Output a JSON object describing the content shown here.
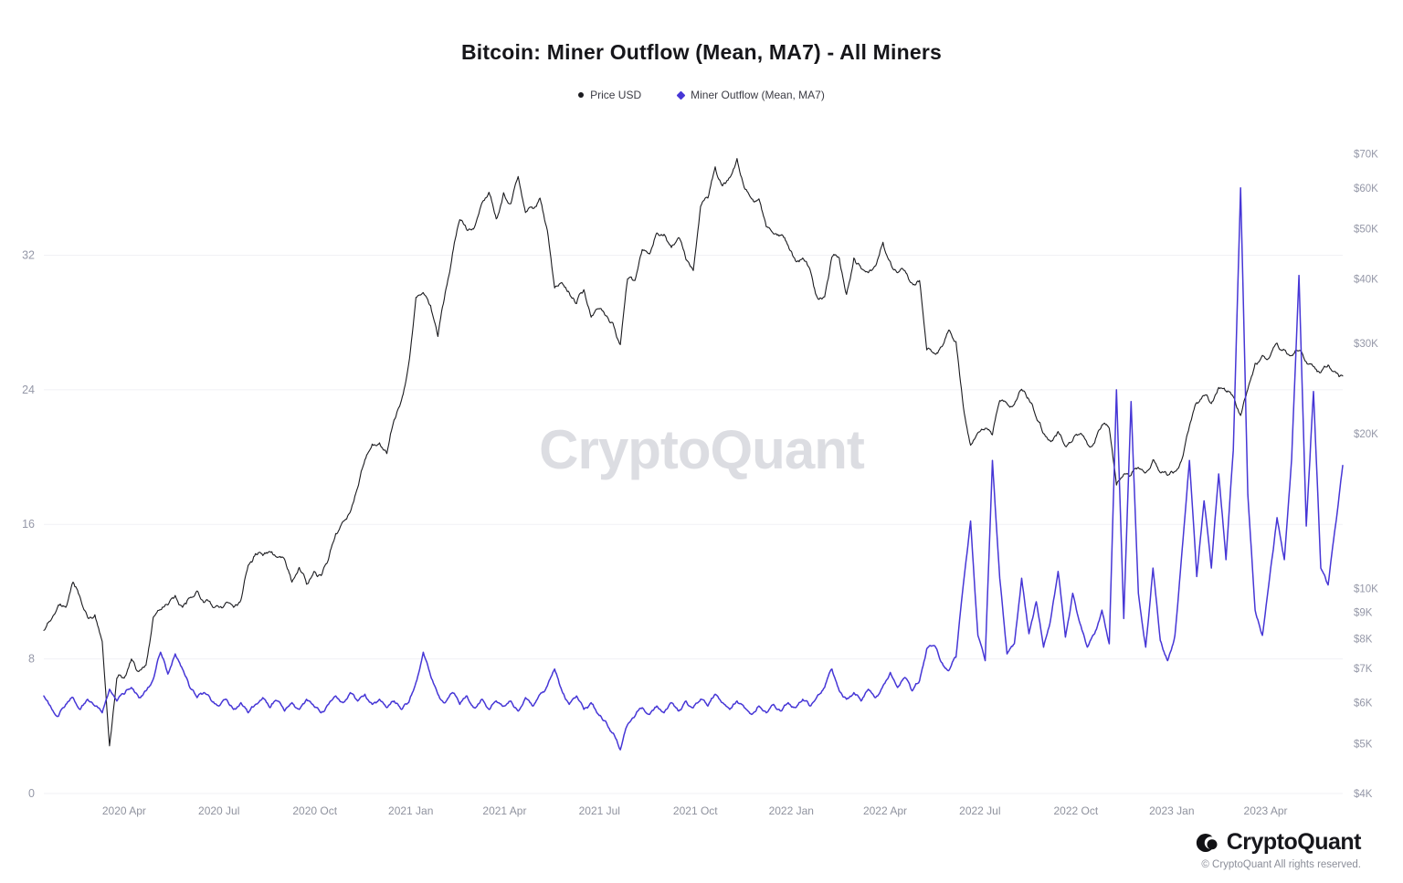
{
  "page": {
    "title": "Bitcoin: Miner Outflow (Mean, MA7) - All Miners",
    "watermark": "CryptoQuant",
    "footer": {
      "brand": "CryptoQuant",
      "copyright": "© CryptoQuant All rights reserved."
    }
  },
  "theme": {
    "grid": "#f1f1f5",
    "axis_text": "#9598a8",
    "x_axis_text": "#8f929e",
    "price_color": "#1b1b1f",
    "outflow_color": "#4636d6"
  },
  "legend": [
    {
      "label": "Price USD",
      "color": "#1b1b1f",
      "marker": "circle"
    },
    {
      "label": "Miner Outflow (Mean, MA7)",
      "color": "#4636d6",
      "marker": "diamond"
    }
  ],
  "chart_data": {
    "type": "line",
    "title": "Bitcoin: Miner Outflow (Mean, MA7) - All Miners",
    "legend_position": "top",
    "grid": "horizontal",
    "x": [
      "2020-01-15",
      "2020-01-22",
      "2020-01-29",
      "2020-02-05",
      "2020-02-12",
      "2020-02-19",
      "2020-02-26",
      "2020-03-04",
      "2020-03-11",
      "2020-03-18",
      "2020-03-25",
      "2020-04-01",
      "2020-04-08",
      "2020-04-15",
      "2020-04-22",
      "2020-04-29",
      "2020-05-06",
      "2020-05-13",
      "2020-05-20",
      "2020-05-27",
      "2020-06-03",
      "2020-06-10",
      "2020-06-17",
      "2020-06-24",
      "2020-07-01",
      "2020-07-08",
      "2020-07-15",
      "2020-07-22",
      "2020-07-29",
      "2020-08-05",
      "2020-08-12",
      "2020-08-19",
      "2020-08-26",
      "2020-09-02",
      "2020-09-09",
      "2020-09-16",
      "2020-09-23",
      "2020-09-30",
      "2020-10-07",
      "2020-10-14",
      "2020-10-21",
      "2020-10-28",
      "2020-11-04",
      "2020-11-11",
      "2020-11-18",
      "2020-11-25",
      "2020-12-02",
      "2020-12-09",
      "2020-12-16",
      "2020-12-23",
      "2020-12-30",
      "2021-01-06",
      "2021-01-13",
      "2021-01-20",
      "2021-01-27",
      "2021-02-03",
      "2021-02-10",
      "2021-02-17",
      "2021-02-24",
      "2021-03-03",
      "2021-03-10",
      "2021-03-17",
      "2021-03-24",
      "2021-03-31",
      "2021-04-07",
      "2021-04-14",
      "2021-04-21",
      "2021-04-28",
      "2021-05-05",
      "2021-05-12",
      "2021-05-19",
      "2021-05-26",
      "2021-06-02",
      "2021-06-09",
      "2021-06-16",
      "2021-06-23",
      "2021-06-30",
      "2021-07-07",
      "2021-07-14",
      "2021-07-21",
      "2021-07-28",
      "2021-08-04",
      "2021-08-11",
      "2021-08-18",
      "2021-08-25",
      "2021-09-01",
      "2021-09-08",
      "2021-09-15",
      "2021-09-22",
      "2021-09-29",
      "2021-10-06",
      "2021-10-13",
      "2021-10-20",
      "2021-10-27",
      "2021-11-03",
      "2021-11-10",
      "2021-11-17",
      "2021-11-24",
      "2021-12-01",
      "2021-12-08",
      "2021-12-15",
      "2021-12-22",
      "2021-12-29",
      "2022-01-05",
      "2022-01-12",
      "2022-01-19",
      "2022-01-26",
      "2022-02-02",
      "2022-02-09",
      "2022-02-16",
      "2022-02-23",
      "2022-03-02",
      "2022-03-09",
      "2022-03-16",
      "2022-03-23",
      "2022-03-30",
      "2022-04-06",
      "2022-04-13",
      "2022-04-20",
      "2022-04-27",
      "2022-05-04",
      "2022-05-11",
      "2022-05-18",
      "2022-05-25",
      "2022-06-01",
      "2022-06-08",
      "2022-06-15",
      "2022-06-22",
      "2022-06-29",
      "2022-07-06",
      "2022-07-13",
      "2022-07-20",
      "2022-07-27",
      "2022-08-03",
      "2022-08-10",
      "2022-08-17",
      "2022-08-24",
      "2022-08-31",
      "2022-09-07",
      "2022-09-14",
      "2022-09-21",
      "2022-09-28",
      "2022-10-05",
      "2022-10-12",
      "2022-10-19",
      "2022-10-26",
      "2022-11-02",
      "2022-11-09",
      "2022-11-16",
      "2022-11-23",
      "2022-11-30",
      "2022-12-07",
      "2022-12-14",
      "2022-12-21",
      "2022-12-28",
      "2023-01-04",
      "2023-01-11",
      "2023-01-18",
      "2023-01-25",
      "2023-02-01",
      "2023-02-08",
      "2023-02-15",
      "2023-02-22",
      "2023-03-01",
      "2023-03-08",
      "2023-03-15",
      "2023-03-22",
      "2023-03-29",
      "2023-04-05",
      "2023-04-12",
      "2023-04-19",
      "2023-04-26",
      "2023-05-03",
      "2023-05-10",
      "2023-05-17",
      "2023-05-24",
      "2023-05-31",
      "2023-06-07",
      "2023-06-14"
    ],
    "series": [
      {
        "name": "Price USD",
        "axis": "right",
        "color": "#1b1b1f",
        "values": [
          8300,
          8700,
          9300,
          9200,
          10300,
          9600,
          8800,
          8900,
          7900,
          4950,
          6700,
          6700,
          7300,
          6900,
          7100,
          8800,
          9100,
          9300,
          9700,
          9200,
          9600,
          9900,
          9400,
          9300,
          9200,
          9400,
          9200,
          9500,
          11100,
          11700,
          11600,
          11800,
          11500,
          11400,
          10300,
          11000,
          10200,
          10800,
          10600,
          11400,
          12800,
          13500,
          14100,
          15700,
          17800,
          19100,
          19200,
          18300,
          21300,
          23200,
          27300,
          36800,
          37600,
          35500,
          30900,
          37600,
          44800,
          52100,
          49700,
          50300,
          56000,
          58900,
          52300,
          58800,
          56000,
          63200,
          53800,
          54800,
          57400,
          49700,
          38400,
          39300,
          37600,
          35800,
          38100,
          33700,
          35000,
          33900,
          32800,
          29800,
          40000,
          39700,
          45600,
          44700,
          49100,
          48800,
          46000,
          48100,
          43600,
          41500,
          55300,
          57400,
          66000,
          60600,
          62900,
          68500,
          60100,
          57200,
          57200,
          50500,
          48900,
          48600,
          46400,
          43400,
          43900,
          41700,
          36800,
          36900,
          44100,
          43900,
          37300,
          43900,
          41900,
          41100,
          42400,
          47100,
          43200,
          41100,
          41500,
          39200,
          39700,
          29100,
          28700,
          29500,
          31800,
          30200,
          22600,
          19000,
          20100,
          20500,
          19900,
          23200,
          22900,
          22800,
          24400,
          23300,
          21500,
          20000,
          19300,
          20200,
          18900,
          19400,
          20000,
          19100,
          19200,
          20800,
          20500,
          15900,
          16700,
          16600,
          17200,
          16800,
          17800,
          16800,
          16600,
          16900,
          17900,
          20700,
          23000,
          23700,
          22900,
          24600,
          24200,
          23600,
          21700,
          24400,
          27400,
          28400,
          28200,
          30000,
          29100,
          28400,
          29000,
          27600,
          27000,
          26300,
          27200,
          26400,
          25900
        ]
      },
      {
        "name": "Miner Outflow (Mean, MA7)",
        "axis": "left",
        "color": "#4636d6",
        "values": [
          5.8,
          5.1,
          4.6,
          5.3,
          5.7,
          5.0,
          5.6,
          5.2,
          4.8,
          6.2,
          5.5,
          5.9,
          6.3,
          5.7,
          6.1,
          6.8,
          8.4,
          7.1,
          8.3,
          7.4,
          6.3,
          5.7,
          6.0,
          5.5,
          5.2,
          5.6,
          5.0,
          5.4,
          4.8,
          5.3,
          5.7,
          5.1,
          5.5,
          4.9,
          5.4,
          5.0,
          5.6,
          5.2,
          4.8,
          5.3,
          5.8,
          5.4,
          6.0,
          5.5,
          5.9,
          5.3,
          5.6,
          5.1,
          5.5,
          5.0,
          5.4,
          6.6,
          8.4,
          7.0,
          5.9,
          5.4,
          6.0,
          5.3,
          5.8,
          5.1,
          5.6,
          5.0,
          5.5,
          5.2,
          5.5,
          4.9,
          5.7,
          5.2,
          5.9,
          6.4,
          7.4,
          6.1,
          5.3,
          5.8,
          5.0,
          5.4,
          4.7,
          4.3,
          3.6,
          2.6,
          4.1,
          4.6,
          5.1,
          4.7,
          5.2,
          4.8,
          5.4,
          4.9,
          5.5,
          5.1,
          5.6,
          5.2,
          5.9,
          5.4,
          5.0,
          5.5,
          5.1,
          4.7,
          5.2,
          4.8,
          5.3,
          4.9,
          5.4,
          5.1,
          5.6,
          5.2,
          5.8,
          6.3,
          7.4,
          6.1,
          5.6,
          6.0,
          5.5,
          6.2,
          5.7,
          6.4,
          7.2,
          6.3,
          6.9,
          6.1,
          6.7,
          8.6,
          8.8,
          7.8,
          7.3,
          8.1,
          12.4,
          16.2,
          9.4,
          7.9,
          19.8,
          12.8,
          8.3,
          8.9,
          12.8,
          9.5,
          11.4,
          8.7,
          10.4,
          13.2,
          9.3,
          11.9,
          10.1,
          8.7,
          9.5,
          10.9,
          8.9,
          24.0,
          10.4,
          23.3,
          11.9,
          8.7,
          13.4,
          9.1,
          7.9,
          9.4,
          14.5,
          19.8,
          12.9,
          17.4,
          13.4,
          19.0,
          13.9,
          20.4,
          36.0,
          17.8,
          10.9,
          9.4,
          12.9,
          16.4,
          13.9,
          19.9,
          30.8,
          15.9,
          23.9,
          13.4,
          12.4,
          15.9,
          19.5
        ]
      }
    ],
    "left_axis": {
      "label": "Miner Outflow (Mean, MA7)",
      "min": 0,
      "max": 39.3,
      "ticks": [
        0,
        8,
        16,
        24,
        32
      ]
    },
    "right_axis": {
      "label": "Price USD",
      "scale": "log",
      "min": 4000,
      "max": 77000,
      "ticks": [
        {
          "v": 4000,
          "label": "$4K"
        },
        {
          "v": 5000,
          "label": "$5K"
        },
        {
          "v": 6000,
          "label": "$6K"
        },
        {
          "v": 7000,
          "label": "$7K"
        },
        {
          "v": 8000,
          "label": "$8K"
        },
        {
          "v": 9000,
          "label": "$9K"
        },
        {
          "v": 10000,
          "label": "$10K"
        },
        {
          "v": 20000,
          "label": "$20K"
        },
        {
          "v": 30000,
          "label": "$30K"
        },
        {
          "v": 40000,
          "label": "$40K"
        },
        {
          "v": 50000,
          "label": "$50K"
        },
        {
          "v": 60000,
          "label": "$60K"
        },
        {
          "v": 70000,
          "label": "$70K"
        }
      ]
    },
    "x_ticks": [
      {
        "date": "2020-04-01",
        "label": "2020 Apr"
      },
      {
        "date": "2020-07-01",
        "label": "2020 Jul"
      },
      {
        "date": "2020-10-01",
        "label": "2020 Oct"
      },
      {
        "date": "2021-01-01",
        "label": "2021 Jan"
      },
      {
        "date": "2021-04-01",
        "label": "2021 Apr"
      },
      {
        "date": "2021-07-01",
        "label": "2021 Jul"
      },
      {
        "date": "2021-10-01",
        "label": "2021 Oct"
      },
      {
        "date": "2022-01-01",
        "label": "2022 Jan"
      },
      {
        "date": "2022-04-01",
        "label": "2022 Apr"
      },
      {
        "date": "2022-07-01",
        "label": "2022 Jul"
      },
      {
        "date": "2022-10-01",
        "label": "2022 Oct"
      },
      {
        "date": "2023-01-01",
        "label": "2023 Jan"
      },
      {
        "date": "2023-04-01",
        "label": "2023 Apr"
      }
    ]
  }
}
